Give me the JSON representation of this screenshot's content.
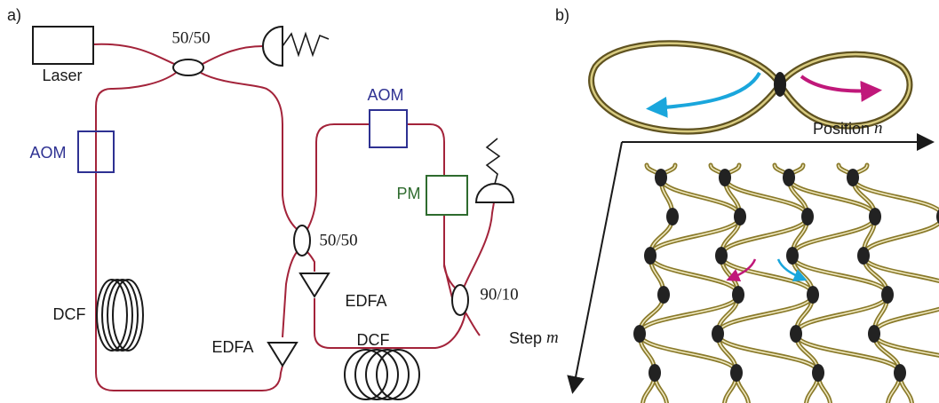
{
  "panel_a": {
    "label": "a)",
    "components": {
      "laser": "Laser",
      "coupler_top": "50/50",
      "aom_left": "AOM",
      "dcf_left": "DCF",
      "edfa_bottom": "EDFA",
      "aom_right": "AOM",
      "pm": "PM",
      "coupler_middle": "50/50",
      "edfa_middle": "EDFA",
      "dcf_bottom": "DCF",
      "coupler_right": "90/10"
    }
  },
  "panel_b": {
    "label": "b)",
    "position_axis": {
      "text": "Position",
      "variable": "n"
    },
    "step_axis": {
      "text": "Step",
      "variable": "m"
    }
  }
}
